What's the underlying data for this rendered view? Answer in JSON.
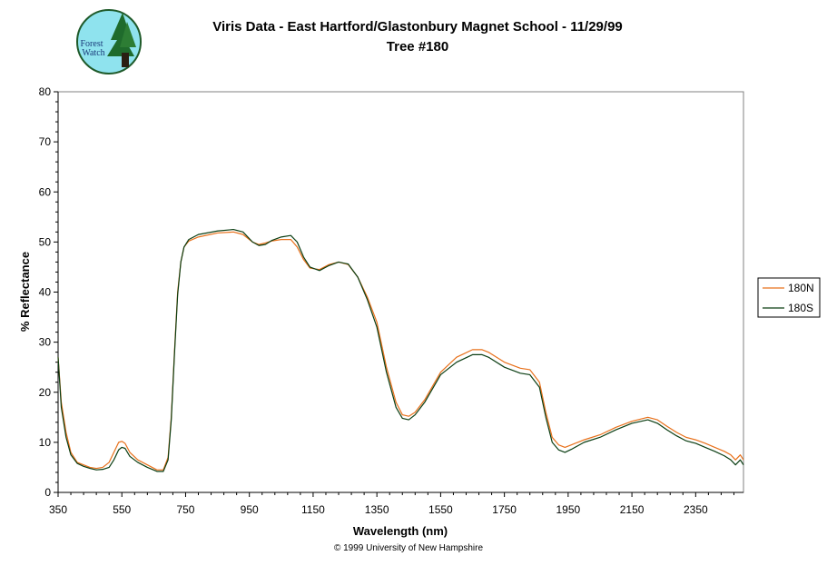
{
  "logo": {
    "text_line1": "Forest",
    "text_line2": "Watch"
  },
  "title_line1": "Viris Data - East Hartford/Glastonbury Magnet School - 11/29/99",
  "title_line2": "Tree #180",
  "copyright": "© 1999 University of New Hampshire",
  "colors": {
    "series_180N": "#e8701a",
    "series_180S": "#0a3d12"
  },
  "chart_data": {
    "type": "line",
    "title": "Viris Data - East Hartford/Glastonbury Magnet School - 11/29/99",
    "subtitle": "Tree #180",
    "xlabel": "Wavelength (nm)",
    "ylabel": "% Reflectance",
    "xlim": [
      350,
      2500
    ],
    "ylim": [
      0,
      80
    ],
    "x_ticks": [
      350,
      550,
      750,
      950,
      1150,
      1350,
      1550,
      1750,
      1950,
      2150,
      2350
    ],
    "y_ticks": [
      0,
      10,
      20,
      30,
      40,
      50,
      60,
      70,
      80
    ],
    "grid": false,
    "legend": "right",
    "series": [
      {
        "name": "180N",
        "x": [
          350,
          360,
          375,
          390,
          410,
          430,
          450,
          470,
          490,
          510,
          525,
          540,
          550,
          560,
          575,
          600,
          630,
          660,
          680,
          695,
          705,
          715,
          725,
          735,
          745,
          760,
          790,
          850,
          900,
          930,
          960,
          980,
          1000,
          1020,
          1050,
          1080,
          1100,
          1120,
          1140,
          1170,
          1200,
          1230,
          1260,
          1290,
          1320,
          1350,
          1380,
          1410,
          1430,
          1450,
          1470,
          1500,
          1550,
          1600,
          1650,
          1680,
          1700,
          1750,
          1800,
          1830,
          1860,
          1880,
          1900,
          1920,
          1940,
          1960,
          1980,
          2000,
          2050,
          2100,
          2150,
          2200,
          2230,
          2260,
          2290,
          2320,
          2350,
          2380,
          2410,
          2440,
          2460,
          2475,
          2490,
          2500
        ],
        "values": [
          27,
          18,
          12,
          8,
          6,
          5.5,
          5,
          4.8,
          5,
          6,
          8,
          10,
          10.2,
          9.8,
          8,
          6.5,
          5.5,
          4.5,
          4.5,
          7,
          15,
          28,
          40,
          46,
          49,
          50.2,
          51,
          51.8,
          52,
          51.5,
          50,
          49.5,
          49.8,
          50.2,
          50.5,
          50.5,
          49,
          46.5,
          44.8,
          44.5,
          45.5,
          46,
          45.5,
          43,
          39,
          34,
          25,
          18,
          15.5,
          15.2,
          16,
          18.5,
          24,
          27,
          28.5,
          28.5,
          28,
          26,
          24.8,
          24.5,
          22,
          16,
          11,
          9.5,
          9,
          9.5,
          10,
          10.5,
          11.5,
          13,
          14.2,
          15,
          14.5,
          13.2,
          12,
          11,
          10.5,
          9.8,
          9,
          8.2,
          7.5,
          6.5,
          7.5,
          6.5
        ]
      },
      {
        "name": "180S",
        "x": [
          350,
          360,
          375,
          390,
          410,
          430,
          450,
          470,
          490,
          510,
          525,
          540,
          550,
          560,
          575,
          600,
          630,
          660,
          680,
          695,
          705,
          715,
          725,
          735,
          745,
          760,
          790,
          850,
          900,
          930,
          960,
          980,
          1000,
          1020,
          1050,
          1080,
          1100,
          1120,
          1140,
          1170,
          1200,
          1230,
          1260,
          1290,
          1320,
          1350,
          1380,
          1410,
          1430,
          1450,
          1470,
          1500,
          1550,
          1600,
          1650,
          1680,
          1700,
          1750,
          1800,
          1830,
          1860,
          1880,
          1900,
          1920,
          1940,
          1960,
          1980,
          2000,
          2050,
          2100,
          2150,
          2200,
          2230,
          2260,
          2290,
          2320,
          2350,
          2380,
          2410,
          2440,
          2460,
          2475,
          2490,
          2500
        ],
        "values": [
          27,
          17,
          11,
          7.5,
          5.8,
          5.2,
          4.8,
          4.5,
          4.6,
          5,
          6.5,
          8.5,
          9,
          8.8,
          7.2,
          6,
          5,
          4.2,
          4.2,
          6.5,
          14.5,
          27.5,
          39.5,
          46,
          49,
          50.5,
          51.5,
          52.2,
          52.5,
          52,
          50,
          49.3,
          49.5,
          50.3,
          51,
          51.3,
          50,
          47,
          45,
          44.3,
          45.3,
          46,
          45.6,
          43,
          38.5,
          33,
          24,
          17,
          14.8,
          14.5,
          15.5,
          18,
          23.5,
          26,
          27.5,
          27.5,
          27,
          25,
          23.8,
          23.5,
          21,
          15,
          10,
          8.5,
          8,
          8.6,
          9.3,
          10,
          11,
          12.5,
          13.8,
          14.5,
          13.8,
          12.5,
          11.3,
          10.3,
          9.8,
          9,
          8.2,
          7.3,
          6.5,
          5.5,
          6.5,
          5.5
        ]
      }
    ]
  }
}
